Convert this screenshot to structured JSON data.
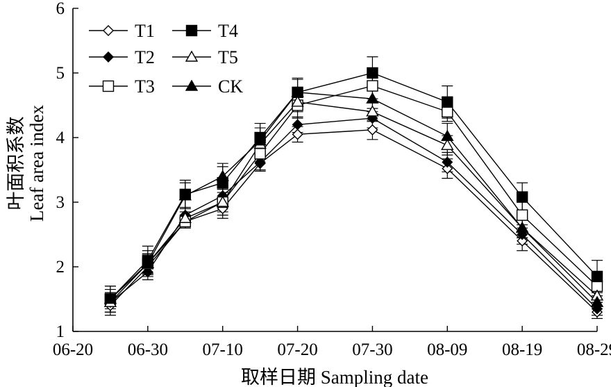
{
  "chart_data": {
    "type": "line",
    "xlabel": "取样日期 Sampling date",
    "ylabel_cn": "叶面积系数",
    "ylabel_en": "Leaf area index",
    "ylim": [
      1,
      6
    ],
    "yticks": [
      "1",
      "2",
      "3",
      "4",
      "5",
      "6"
    ],
    "xticks": [
      "06-20",
      "06-30",
      "07-10",
      "07-20",
      "07-30",
      "08-09",
      "08-19",
      "08-29"
    ],
    "x": [
      "06-25",
      "06-30",
      "07-05",
      "07-10",
      "07-15",
      "07-20",
      "07-30",
      "08-09",
      "08-19",
      "08-29"
    ],
    "grid": false,
    "legend_position": "top-left",
    "series": [
      {
        "name": "T1",
        "marker": "diamond-open",
        "values": [
          1.4,
          2.0,
          2.7,
          2.9,
          3.6,
          4.05,
          4.12,
          3.52,
          2.4,
          1.3
        ],
        "errors": [
          0.15,
          0.12,
          0.1,
          0.15,
          0.12,
          0.12,
          0.15,
          0.15,
          0.15,
          0.1
        ]
      },
      {
        "name": "T2",
        "marker": "diamond-filled",
        "values": [
          1.45,
          1.92,
          2.8,
          3.1,
          3.62,
          4.2,
          4.3,
          3.62,
          2.5,
          1.35
        ],
        "errors": [
          0.15,
          0.12,
          0.12,
          0.15,
          0.12,
          0.12,
          0.15,
          0.15,
          0.15,
          0.1
        ]
      },
      {
        "name": "T3",
        "marker": "square-open",
        "values": [
          1.5,
          2.05,
          2.7,
          3.0,
          3.75,
          4.5,
          4.8,
          4.4,
          2.8,
          1.7
        ],
        "errors": [
          0.2,
          0.2,
          0.1,
          0.2,
          0.15,
          0.2,
          0.2,
          0.15,
          0.2,
          0.15
        ]
      },
      {
        "name": "T4",
        "marker": "square-filled",
        "values": [
          1.5,
          2.1,
          3.12,
          3.3,
          4.0,
          4.7,
          5.0,
          4.55,
          3.08,
          1.85
        ],
        "errors": [
          0.2,
          0.22,
          0.22,
          0.25,
          0.22,
          0.22,
          0.25,
          0.25,
          0.22,
          0.25
        ]
      },
      {
        "name": "T5",
        "marker": "triangle-open",
        "values": [
          1.45,
          2.05,
          2.75,
          3.0,
          3.9,
          4.55,
          4.4,
          3.88,
          2.6,
          1.55
        ],
        "errors": [
          0.15,
          0.15,
          0.1,
          0.15,
          0.15,
          0.15,
          0.15,
          0.15,
          0.15,
          0.1
        ]
      },
      {
        "name": "CK",
        "marker": "triangle-filled",
        "values": [
          1.5,
          2.05,
          3.1,
          3.4,
          3.95,
          4.7,
          4.6,
          4.02,
          2.6,
          1.45
        ],
        "errors": [
          0.15,
          0.15,
          0.2,
          0.2,
          0.2,
          0.2,
          0.2,
          0.2,
          0.15,
          0.1
        ]
      }
    ]
  }
}
